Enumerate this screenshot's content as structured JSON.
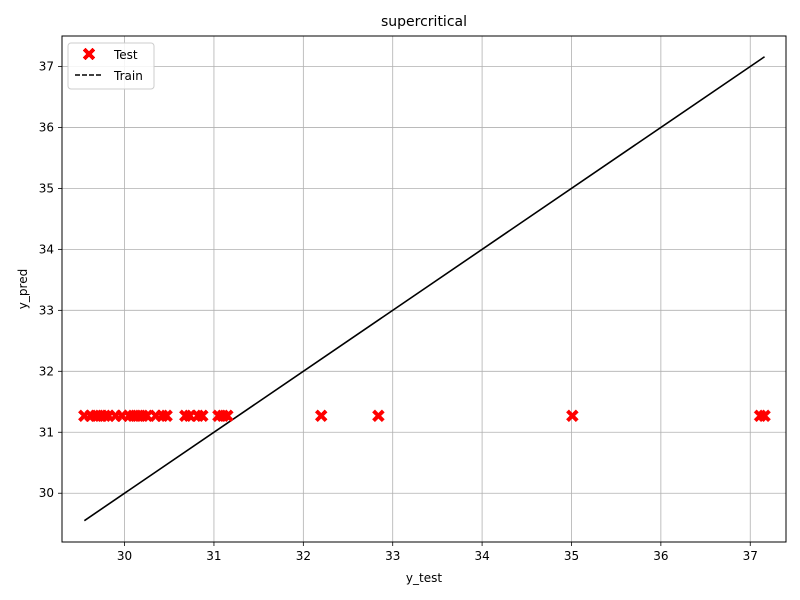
{
  "chart_data": {
    "type": "scatter",
    "title": "supercritical",
    "xlabel": "y_test",
    "ylabel": "y_pred",
    "xlim": [
      29.3,
      37.4
    ],
    "ylim": [
      29.2,
      37.5
    ],
    "xticks": [
      30,
      31,
      32,
      33,
      34,
      35,
      36,
      37
    ],
    "yticks": [
      30,
      31,
      32,
      33,
      34,
      35,
      36,
      37
    ],
    "grid": true,
    "legend_position": "upper-left",
    "series": [
      {
        "name": "Test",
        "type": "scatter",
        "marker": "X",
        "color": "#ff0000",
        "points": [
          {
            "x": 29.55,
            "y": 31.27
          },
          {
            "x": 29.62,
            "y": 31.27
          },
          {
            "x": 29.68,
            "y": 31.27
          },
          {
            "x": 29.73,
            "y": 31.27
          },
          {
            "x": 29.78,
            "y": 31.27
          },
          {
            "x": 29.82,
            "y": 31.27
          },
          {
            "x": 29.9,
            "y": 31.27
          },
          {
            "x": 29.97,
            "y": 31.27
          },
          {
            "x": 30.05,
            "y": 31.27
          },
          {
            "x": 30.1,
            "y": 31.27
          },
          {
            "x": 30.15,
            "y": 31.27
          },
          {
            "x": 30.2,
            "y": 31.27
          },
          {
            "x": 30.25,
            "y": 31.27
          },
          {
            "x": 30.35,
            "y": 31.27
          },
          {
            "x": 30.42,
            "y": 31.27
          },
          {
            "x": 30.47,
            "y": 31.27
          },
          {
            "x": 30.68,
            "y": 31.27
          },
          {
            "x": 30.73,
            "y": 31.27
          },
          {
            "x": 30.82,
            "y": 31.27
          },
          {
            "x": 30.87,
            "y": 31.27
          },
          {
            "x": 31.05,
            "y": 31.27
          },
          {
            "x": 31.1,
            "y": 31.27
          },
          {
            "x": 31.15,
            "y": 31.27
          },
          {
            "x": 32.2,
            "y": 31.27
          },
          {
            "x": 32.84,
            "y": 31.27
          },
          {
            "x": 35.01,
            "y": 31.27
          },
          {
            "x": 37.11,
            "y": 31.27
          },
          {
            "x": 37.16,
            "y": 31.27
          }
        ]
      },
      {
        "name": "Train",
        "type": "line",
        "style": "dashed",
        "color": "#000000",
        "points": [
          {
            "x": 29.55,
            "y": 29.55
          },
          {
            "x": 37.16,
            "y": 37.16
          }
        ]
      }
    ]
  }
}
